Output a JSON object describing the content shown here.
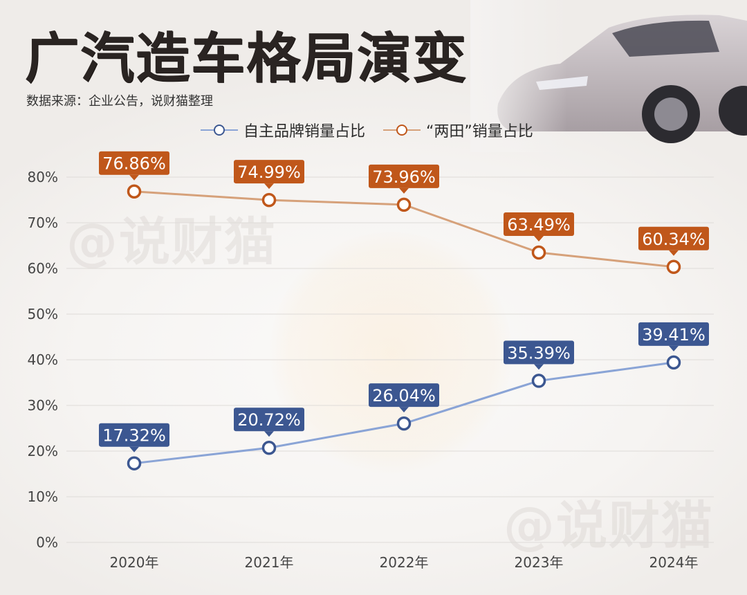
{
  "title": "广汽造车格局演变",
  "source": "数据来源：企业公告，说财猫整理",
  "watermark": "@说财猫",
  "colors": {
    "blue_line": "#8aa4d6",
    "blue_label": "#3c5791",
    "orange_line": "#d6a17a",
    "orange_label": "#c0571a",
    "grid": "#dedbd8",
    "axis_text": "#444444"
  },
  "chart_data": {
    "type": "line",
    "categories": [
      "2020年",
      "2021年",
      "2022年",
      "2023年",
      "2024年"
    ],
    "yticks": [
      "0%",
      "10%",
      "20%",
      "30%",
      "40%",
      "50%",
      "60%",
      "70%",
      "80%"
    ],
    "ylim": [
      0,
      80
    ],
    "grid": true,
    "legend_position": "top-center",
    "series": [
      {
        "name": "自主品牌销量占比",
        "values": [
          17.32,
          20.72,
          26.04,
          35.39,
          39.41
        ],
        "labels": [
          "17.32%",
          "20.72%",
          "26.04%",
          "35.39%",
          "39.41%"
        ],
        "color_key": "blue"
      },
      {
        "name": "“两田”销量占比",
        "values": [
          76.86,
          74.99,
          73.96,
          63.49,
          60.34
        ],
        "labels": [
          "76.86%",
          "74.99%",
          "73.96%",
          "63.49%",
          "60.34%"
        ],
        "color_key": "orange"
      }
    ]
  }
}
